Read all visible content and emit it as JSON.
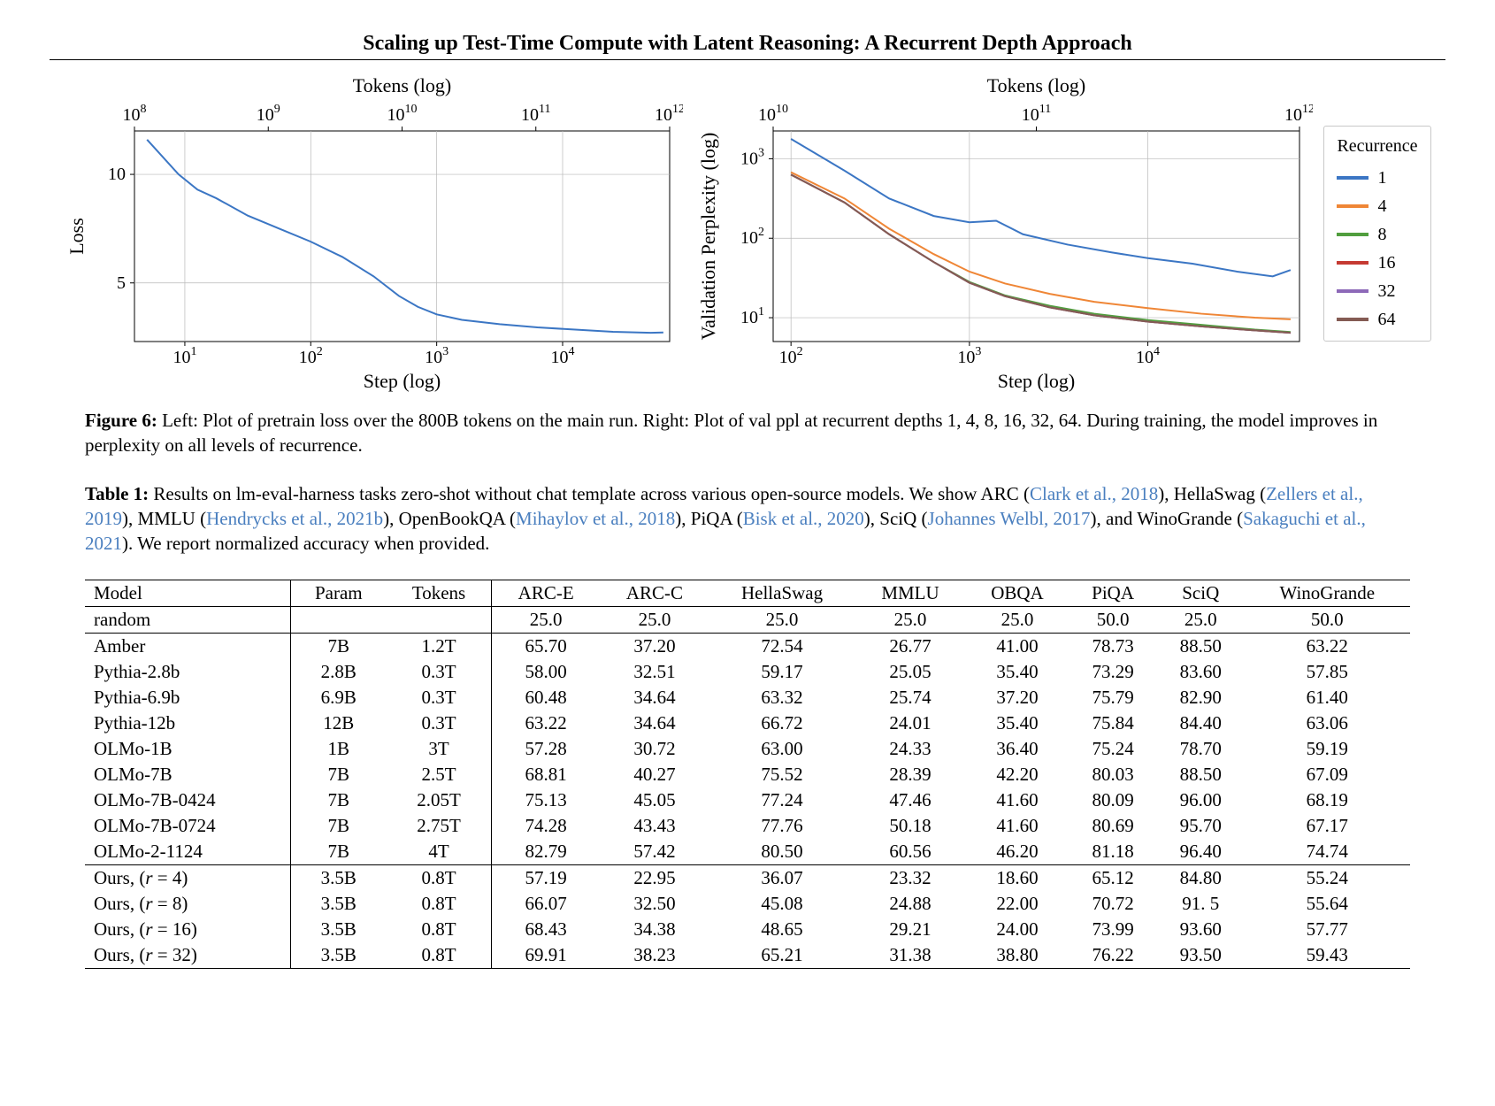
{
  "title": "Scaling up Test-Time Compute with Latent Reasoning: A Recurrent Depth Approach",
  "figure6": {
    "label": "Figure 6:",
    "text_parts": [
      " Left: Plot of pretrain loss over the 800B tokens on the main run. Right: Plot of val ppl at recurrent depths 1, 4, 8, 16, 32, 64. During training, the model improves in perplexity on all levels of recurrence."
    ]
  },
  "left_chart": {
    "type": "line",
    "ylabel": "Loss",
    "xlabel_bottom": "Step (log)",
    "xlabel_top": "Tokens (log)",
    "label_fontsize": 22,
    "tick_fontsize": 20,
    "plot_bg": "#ffffff",
    "grid_color": "#b8b8b8",
    "axis_color": "#000000",
    "line_color": "#3b76c4",
    "line_width": 2,
    "x_log_range": [
      0.6,
      4.85
    ],
    "y_range": [
      2.3,
      12
    ],
    "y_ticks": [
      5,
      10
    ],
    "x_bottom_ticks": [
      1,
      2,
      3,
      4
    ],
    "x_bottom_tick_labels": [
      "10¹",
      "10²",
      "10³",
      "10⁴"
    ],
    "x_top_ticks": [
      8,
      9,
      10,
      11,
      12
    ],
    "x_top_tick_labels": [
      "10⁸",
      "10⁹",
      "10¹⁰",
      "10¹¹",
      "10¹²"
    ],
    "series": [
      {
        "xlog": 0.7,
        "y": 11.6
      },
      {
        "xlog": 0.95,
        "y": 10.0
      },
      {
        "xlog": 1.1,
        "y": 9.3
      },
      {
        "xlog": 1.25,
        "y": 8.9
      },
      {
        "xlog": 1.5,
        "y": 8.1
      },
      {
        "xlog": 1.75,
        "y": 7.5
      },
      {
        "xlog": 2.0,
        "y": 6.9
      },
      {
        "xlog": 2.25,
        "y": 6.2
      },
      {
        "xlog": 2.5,
        "y": 5.3
      },
      {
        "xlog": 2.7,
        "y": 4.4
      },
      {
        "xlog": 2.85,
        "y": 3.9
      },
      {
        "xlog": 3.0,
        "y": 3.55
      },
      {
        "xlog": 3.2,
        "y": 3.3
      },
      {
        "xlog": 3.5,
        "y": 3.1
      },
      {
        "xlog": 3.8,
        "y": 2.95
      },
      {
        "xlog": 4.1,
        "y": 2.85
      },
      {
        "xlog": 4.4,
        "y": 2.75
      },
      {
        "xlog": 4.7,
        "y": 2.7
      },
      {
        "xlog": 4.8,
        "y": 2.72
      }
    ]
  },
  "right_chart": {
    "type": "line",
    "ylabel": "Validation Perplexity (log)",
    "xlabel_bottom": "Step (log)",
    "xlabel_top": "Tokens (log)",
    "label_fontsize": 22,
    "tick_fontsize": 20,
    "plot_bg": "#ffffff",
    "grid_color": "#b8b8b8",
    "axis_color": "#000000",
    "line_width": 2,
    "x_log_range": [
      1.9,
      4.85
    ],
    "y_log_range": [
      0.7,
      3.35
    ],
    "y_ticks": [
      1,
      2,
      3
    ],
    "y_tick_labels": [
      "10¹",
      "10²",
      "10³"
    ],
    "x_bottom_ticks": [
      2,
      3,
      4
    ],
    "x_bottom_tick_labels": [
      "10²",
      "10³",
      "10⁴"
    ],
    "x_top_ticks": [
      10,
      11,
      12
    ],
    "x_top_tick_labels": [
      "10¹⁰",
      "10¹¹",
      "10¹²"
    ],
    "series": {
      "1": {
        "color": "#3b76c4",
        "points": [
          {
            "xlog": 2.0,
            "ylog": 3.25
          },
          {
            "xlog": 2.3,
            "ylog": 2.85
          },
          {
            "xlog": 2.55,
            "ylog": 2.5
          },
          {
            "xlog": 2.8,
            "ylog": 2.28
          },
          {
            "xlog": 3.0,
            "ylog": 2.2
          },
          {
            "xlog": 3.15,
            "ylog": 2.22
          },
          {
            "xlog": 3.3,
            "ylog": 2.05
          },
          {
            "xlog": 3.55,
            "ylog": 1.92
          },
          {
            "xlog": 3.8,
            "ylog": 1.82
          },
          {
            "xlog": 4.0,
            "ylog": 1.75
          },
          {
            "xlog": 4.25,
            "ylog": 1.68
          },
          {
            "xlog": 4.5,
            "ylog": 1.58
          },
          {
            "xlog": 4.7,
            "ylog": 1.52
          },
          {
            "xlog": 4.8,
            "ylog": 1.6
          }
        ]
      },
      "4": {
        "color": "#ef8636",
        "points": [
          {
            "xlog": 2.0,
            "ylog": 2.83
          },
          {
            "xlog": 2.3,
            "ylog": 2.5
          },
          {
            "xlog": 2.55,
            "ylog": 2.12
          },
          {
            "xlog": 2.8,
            "ylog": 1.8
          },
          {
            "xlog": 3.0,
            "ylog": 1.58
          },
          {
            "xlog": 3.2,
            "ylog": 1.43
          },
          {
            "xlog": 3.45,
            "ylog": 1.3
          },
          {
            "xlog": 3.7,
            "ylog": 1.2
          },
          {
            "xlog": 4.0,
            "ylog": 1.12
          },
          {
            "xlog": 4.3,
            "ylog": 1.05
          },
          {
            "xlog": 4.6,
            "ylog": 1.0
          },
          {
            "xlog": 4.8,
            "ylog": 0.98
          }
        ]
      },
      "8": {
        "color": "#519e3e",
        "points": [
          {
            "xlog": 2.0,
            "ylog": 2.8
          },
          {
            "xlog": 2.3,
            "ylog": 2.45
          },
          {
            "xlog": 2.55,
            "ylog": 2.05
          },
          {
            "xlog": 2.8,
            "ylog": 1.7
          },
          {
            "xlog": 3.0,
            "ylog": 1.45
          },
          {
            "xlog": 3.2,
            "ylog": 1.28
          },
          {
            "xlog": 3.45,
            "ylog": 1.15
          },
          {
            "xlog": 3.7,
            "ylog": 1.05
          },
          {
            "xlog": 4.0,
            "ylog": 0.97
          },
          {
            "xlog": 4.3,
            "ylog": 0.91
          },
          {
            "xlog": 4.6,
            "ylog": 0.85
          },
          {
            "xlog": 4.8,
            "ylog": 0.82
          }
        ]
      },
      "16": {
        "color": "#c53a32",
        "points": [
          {
            "xlog": 2.0,
            "ylog": 2.8
          },
          {
            "xlog": 2.3,
            "ylog": 2.45
          },
          {
            "xlog": 2.55,
            "ylog": 2.05
          },
          {
            "xlog": 2.8,
            "ylog": 1.7
          },
          {
            "xlog": 3.0,
            "ylog": 1.44
          },
          {
            "xlog": 3.2,
            "ylog": 1.27
          },
          {
            "xlog": 3.45,
            "ylog": 1.13
          },
          {
            "xlog": 3.7,
            "ylog": 1.03
          },
          {
            "xlog": 4.0,
            "ylog": 0.95
          },
          {
            "xlog": 4.3,
            "ylog": 0.89
          },
          {
            "xlog": 4.6,
            "ylog": 0.84
          },
          {
            "xlog": 4.8,
            "ylog": 0.81
          }
        ]
      },
      "32": {
        "color": "#8d69b8",
        "points": [
          {
            "xlog": 2.0,
            "ylog": 2.8
          },
          {
            "xlog": 2.3,
            "ylog": 2.45
          },
          {
            "xlog": 2.55,
            "ylog": 2.05
          },
          {
            "xlog": 2.8,
            "ylog": 1.7
          },
          {
            "xlog": 3.0,
            "ylog": 1.44
          },
          {
            "xlog": 3.2,
            "ylog": 1.27
          },
          {
            "xlog": 3.45,
            "ylog": 1.13
          },
          {
            "xlog": 3.7,
            "ylog": 1.03
          },
          {
            "xlog": 4.0,
            "ylog": 0.95
          },
          {
            "xlog": 4.3,
            "ylog": 0.89
          },
          {
            "xlog": 4.6,
            "ylog": 0.84
          },
          {
            "xlog": 4.8,
            "ylog": 0.81
          }
        ]
      },
      "64": {
        "color": "#845b53",
        "points": [
          {
            "xlog": 2.0,
            "ylog": 2.8
          },
          {
            "xlog": 2.3,
            "ylog": 2.45
          },
          {
            "xlog": 2.55,
            "ylog": 2.05
          },
          {
            "xlog": 2.8,
            "ylog": 1.7
          },
          {
            "xlog": 3.0,
            "ylog": 1.44
          },
          {
            "xlog": 3.2,
            "ylog": 1.27
          },
          {
            "xlog": 3.45,
            "ylog": 1.13
          },
          {
            "xlog": 3.7,
            "ylog": 1.03
          },
          {
            "xlog": 4.0,
            "ylog": 0.95
          },
          {
            "xlog": 4.3,
            "ylog": 0.89
          },
          {
            "xlog": 4.6,
            "ylog": 0.84
          },
          {
            "xlog": 4.8,
            "ylog": 0.81
          }
        ]
      }
    }
  },
  "legend": {
    "title": "Recurrence",
    "border_color": "#c8c8c8",
    "items": [
      {
        "label": "1",
        "color": "#3b76c4"
      },
      {
        "label": "4",
        "color": "#ef8636"
      },
      {
        "label": "8",
        "color": "#519e3e"
      },
      {
        "label": "16",
        "color": "#c53a32"
      },
      {
        "label": "32",
        "color": "#8d69b8"
      },
      {
        "label": "64",
        "color": "#845b53"
      }
    ]
  },
  "table1": {
    "label": "Table 1:",
    "caption_segments": [
      {
        "t": " Results on lm-eval-harness tasks zero-shot without chat template across various open-source models. We show ARC ("
      },
      {
        "t": "Clark et al., 2018",
        "cite": true
      },
      {
        "t": "), HellaSwag ("
      },
      {
        "t": "Zellers et al., 2019",
        "cite": true
      },
      {
        "t": "), MMLU ("
      },
      {
        "t": "Hendrycks et al., 2021b",
        "cite": true
      },
      {
        "t": "), OpenBookQA ("
      },
      {
        "t": "Mihaylov et al., 2018",
        "cite": true
      },
      {
        "t": "), PiQA ("
      },
      {
        "t": "Bisk et al., 2020",
        "cite": true
      },
      {
        "t": "), SciQ ("
      },
      {
        "t": "Johannes Welbl, 2017",
        "cite": true
      },
      {
        "t": "), and WinoGrande ("
      },
      {
        "t": "Sakaguchi et al., 2021",
        "cite": true
      },
      {
        "t": "). We report normalized accuracy when provided."
      }
    ],
    "columns": [
      "Model",
      "Param",
      "Tokens",
      "ARC-E",
      "ARC-C",
      "HellaSwag",
      "MMLU",
      "OBQA",
      "PiQA",
      "SciQ",
      "WinoGrande"
    ],
    "random_row": [
      "random",
      "",
      "",
      "25.0",
      "25.0",
      "25.0",
      "25.0",
      "25.0",
      "50.0",
      "25.0",
      "50.0"
    ],
    "group1": [
      [
        "Amber",
        "7B",
        "1.2T",
        "65.70",
        "37.20",
        "72.54",
        "26.77",
        "41.00",
        "78.73",
        "88.50",
        "63.22"
      ],
      [
        "Pythia-2.8b",
        "2.8B",
        "0.3T",
        "58.00",
        "32.51",
        "59.17",
        "25.05",
        "35.40",
        "73.29",
        "83.60",
        "57.85"
      ],
      [
        "Pythia-6.9b",
        "6.9B",
        "0.3T",
        "60.48",
        "34.64",
        "63.32",
        "25.74",
        "37.20",
        "75.79",
        "82.90",
        "61.40"
      ],
      [
        "Pythia-12b",
        "12B",
        "0.3T",
        "63.22",
        "34.64",
        "66.72",
        "24.01",
        "35.40",
        "75.84",
        "84.40",
        "63.06"
      ],
      [
        "OLMo-1B",
        "1B",
        "3T",
        "57.28",
        "30.72",
        "63.00",
        "24.33",
        "36.40",
        "75.24",
        "78.70",
        "59.19"
      ],
      [
        "OLMo-7B",
        "7B",
        "2.5T",
        "68.81",
        "40.27",
        "75.52",
        "28.39",
        "42.20",
        "80.03",
        "88.50",
        "67.09"
      ],
      [
        "OLMo-7B-0424",
        "7B",
        "2.05T",
        "75.13",
        "45.05",
        "77.24",
        "47.46",
        "41.60",
        "80.09",
        "96.00",
        "68.19"
      ],
      [
        "OLMo-7B-0724",
        "7B",
        "2.75T",
        "74.28",
        "43.43",
        "77.76",
        "50.18",
        "41.60",
        "80.69",
        "95.70",
        "67.17"
      ],
      [
        "OLMo-2-1124",
        "7B",
        "4T",
        "82.79",
        "57.42",
        "80.50",
        "60.56",
        "46.20",
        "81.18",
        "96.40",
        "74.74"
      ]
    ],
    "group2": [
      [
        "Ours, (r = 4)",
        "3.5B",
        "0.8T",
        "57.19",
        "22.95",
        "36.07",
        "23.32",
        "18.60",
        "65.12",
        "84.80",
        "55.24"
      ],
      [
        "Ours, (r = 8)",
        "3.5B",
        "0.8T",
        "66.07",
        "32.50",
        "45.08",
        "24.88",
        "22.00",
        "70.72",
        "91. 5",
        "55.64"
      ],
      [
        "Ours, (r = 16)",
        "3.5B",
        "0.8T",
        "68.43",
        "34.38",
        "48.65",
        "29.21",
        "24.00",
        "73.99",
        "93.60",
        "57.77"
      ],
      [
        "Ours, (r = 32)",
        "3.5B",
        "0.8T",
        "69.91",
        "38.23",
        "65.21",
        "31.38",
        "38.80",
        "76.22",
        "93.50",
        "59.43"
      ]
    ]
  }
}
